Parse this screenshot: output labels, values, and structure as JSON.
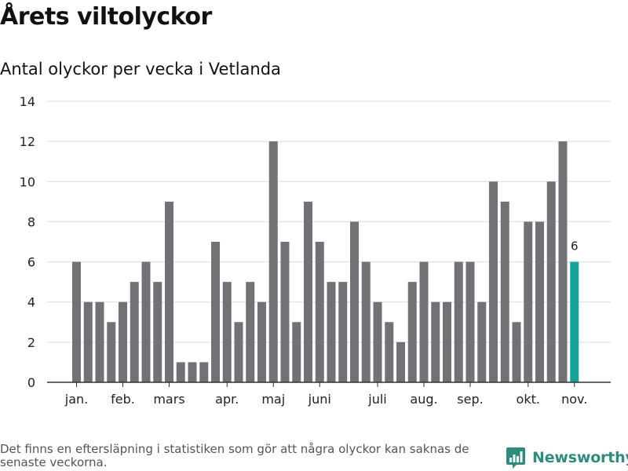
{
  "title": "Årets viltolyckor",
  "subtitle": "Antal olyckor per vecka i Vetlanda",
  "footnote": "Det finns en eftersläpning i statistiken som gör att några olyckor kan saknas de senaste veckorna.",
  "brand": "Newsworthy",
  "colors": {
    "bar": "#727176",
    "highlight": "#13a497",
    "grid": "#dddddd",
    "axis": "#333333",
    "brand": "#2e8b7d"
  },
  "chart_data": {
    "type": "bar",
    "title": "Antal olyckor per vecka i Vetlanda",
    "xlabel": "",
    "ylabel": "",
    "ylim": [
      0,
      14
    ],
    "yticks": [
      0,
      2,
      4,
      6,
      8,
      10,
      12,
      14
    ],
    "grid": true,
    "values": [
      6,
      4,
      4,
      3,
      4,
      5,
      6,
      5,
      9,
      1,
      1,
      1,
      7,
      5,
      3,
      5,
      4,
      12,
      7,
      3,
      9,
      7,
      5,
      5,
      8,
      6,
      4,
      3,
      2,
      5,
      6,
      4,
      4,
      6,
      6,
      4,
      10,
      9,
      3,
      8,
      8,
      10,
      12,
      6
    ],
    "highlight_index": 43,
    "highlight_label": "6",
    "month_ticks": [
      {
        "label": "jan.",
        "bar": 0
      },
      {
        "label": "feb.",
        "bar": 4
      },
      {
        "label": "mars",
        "bar": 8
      },
      {
        "label": "apr.",
        "bar": 13
      },
      {
        "label": "maj",
        "bar": 17
      },
      {
        "label": "juni",
        "bar": 21
      },
      {
        "label": "juli",
        "bar": 26
      },
      {
        "label": "aug.",
        "bar": 30
      },
      {
        "label": "sep.",
        "bar": 34
      },
      {
        "label": "okt.",
        "bar": 39
      },
      {
        "label": "nov.",
        "bar": 43
      }
    ]
  }
}
